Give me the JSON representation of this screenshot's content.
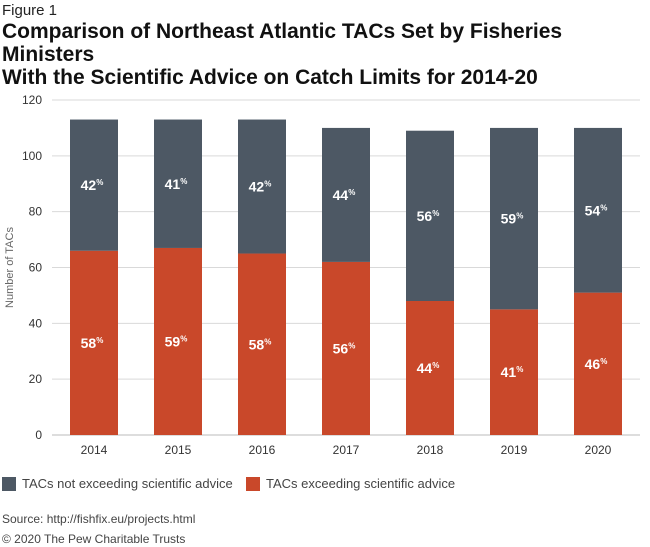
{
  "figure_label": "Figure 1",
  "title_line1": "Comparison of Northeast Atlantic TACs Set by Fisheries Ministers",
  "title_line2": "With the Scientific Advice on Catch Limits for 2014-20",
  "colors": {
    "not_exceeding": "#4d5864",
    "exceeding": "#c9482a",
    "grid": "#d9d9d9",
    "axis_text": "#333333",
    "bar_label": "#ffffff"
  },
  "chart_data": {
    "type": "bar",
    "stacked": true,
    "categories": [
      "2014",
      "2015",
      "2016",
      "2017",
      "2018",
      "2019",
      "2020"
    ],
    "series": [
      {
        "name": "TACs exceeding scientific advice",
        "color_key": "exceeding",
        "values": [
          66,
          67,
          65,
          62,
          48,
          45,
          51
        ],
        "labels": [
          "58%",
          "59%",
          "58%",
          "56%",
          "44%",
          "41%",
          "46%"
        ]
      },
      {
        "name": "TACs not exceeding scientific advice",
        "color_key": "not_exceeding",
        "values": [
          47,
          46,
          48,
          48,
          61,
          65,
          59
        ],
        "labels": [
          "42%",
          "41%",
          "42%",
          "44%",
          "56%",
          "59%",
          "54%"
        ]
      }
    ],
    "ylabel": "Number of TACs",
    "ylim": [
      0,
      120
    ],
    "yticks": [
      0,
      20,
      40,
      60,
      80,
      100,
      120
    ],
    "grid": true
  },
  "legend": {
    "item1": "TACs not exceeding scientific advice",
    "item2": "TACs exceeding scientific advice"
  },
  "source": "Source: http://fishfix.eu/projects.html",
  "copyright": "© 2020 The Pew Charitable Trusts"
}
